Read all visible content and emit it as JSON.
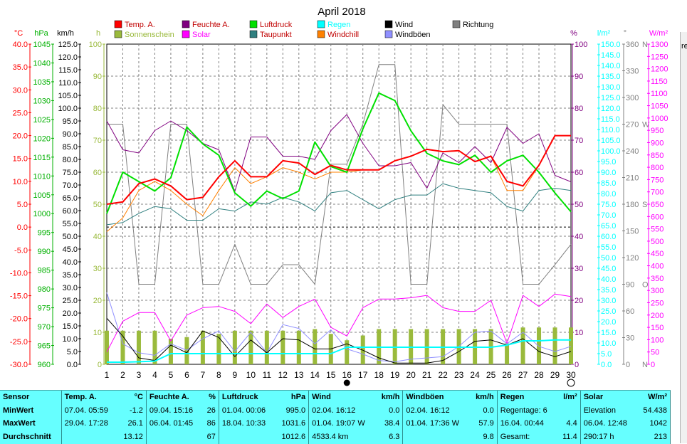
{
  "chart_data": {
    "type": "line",
    "title": "April 2018",
    "x": [
      1,
      2,
      3,
      4,
      5,
      6,
      7,
      8,
      9,
      10,
      11,
      12,
      13,
      14,
      15,
      16,
      17,
      18,
      19,
      20,
      21,
      22,
      23,
      24,
      25,
      26,
      27,
      28,
      29,
      30
    ],
    "xlim": [
      1,
      30
    ],
    "grid": true,
    "legend": [
      {
        "name": "Temp. A.",
        "color": "#ff0000"
      },
      {
        "name": "Feuchte A.",
        "color": "#800080"
      },
      {
        "name": "Luftdruck",
        "color": "#00e000"
      },
      {
        "name": "Regen",
        "color": "#00ffff"
      },
      {
        "name": "Wind",
        "color": "#000000"
      },
      {
        "name": "Richtung",
        "color": "#808080"
      },
      {
        "name": "Sonnenschein",
        "color": "#9aba3c"
      },
      {
        "name": "Solar",
        "color": "#ff00ff"
      },
      {
        "name": "Taupunkt",
        "color": "#2f7f7f"
      },
      {
        "name": "Windchill",
        "color": "#ff8000"
      },
      {
        "name": "Windböen",
        "color": "#9090ff"
      }
    ],
    "axes": {
      "temp": {
        "unit": "°C",
        "min": -30,
        "max": 40,
        "step": 5,
        "color": "#ff0000"
      },
      "pressure": {
        "unit": "hPa",
        "min": 960,
        "max": 1045,
        "step": 5,
        "color": "#00b000"
      },
      "wind": {
        "unit": "km/h",
        "min": 0,
        "max": 125,
        "step": 5,
        "color": "#000000"
      },
      "sunshine": {
        "unit": "h",
        "min": 0,
        "max": 100,
        "step": 10,
        "color": "#9aba3c"
      },
      "humidity": {
        "unit": "%",
        "min": 0,
        "max": 100,
        "step": 10,
        "color": "#800080"
      },
      "rain": {
        "unit": "l/m²",
        "min": 0,
        "max": 150,
        "step": 5,
        "color": "#00ffff"
      },
      "direction": {
        "unit": "°",
        "min": 0,
        "max": 360,
        "step": 30,
        "color": "#808080",
        "markers": [
          {
            "value": 360,
            "label": "N"
          },
          {
            "value": 270,
            "label": "W"
          },
          {
            "value": 180,
            "label": "S"
          },
          {
            "value": 90,
            "label": "O"
          },
          {
            "value": 0,
            "label": "N"
          }
        ]
      },
      "solar": {
        "unit": "W/m²",
        "min": 0,
        "max": 1300,
        "step": 50,
        "color": "#ff00ff"
      }
    },
    "series": [
      {
        "name": "Temp. A.",
        "axis": "temp",
        "color": "#ff0000",
        "values": [
          5.0,
          5.5,
          9.5,
          10.5,
          9.0,
          6.0,
          6.5,
          11.0,
          14.5,
          11.0,
          11.0,
          14.5,
          14.0,
          11.5,
          13.5,
          12.5,
          12.5,
          12.5,
          14.5,
          15.5,
          17.0,
          16.5,
          16.7,
          14.3,
          15.5,
          10.0,
          9.0,
          13.5,
          20.0,
          20.0
        ]
      },
      {
        "name": "Feuchte A.",
        "axis": "humidity",
        "color": "#800080",
        "values": [
          76,
          67,
          66,
          73,
          76,
          73,
          69,
          67,
          54,
          71,
          71,
          65,
          65,
          64,
          73,
          78,
          69,
          62,
          62,
          63,
          55,
          66,
          63,
          68,
          63,
          74,
          69,
          72,
          59,
          57
        ]
      },
      {
        "name": "Luftdruck",
        "axis": "pressure",
        "color": "#00e000",
        "values": [
          1000.0,
          1011.0,
          1008.5,
          1006.0,
          1009.5,
          1023.0,
          1018.5,
          1015.5,
          1005.5,
          1002.0,
          1006.0,
          1004.0,
          1006.0,
          1019.0,
          1012.5,
          1011.0,
          1022.5,
          1032.0,
          1030.0,
          1022.0,
          1016.0,
          1014.0,
          1013.0,
          1015.5,
          1011.0,
          1014.0,
          1015.5,
          1011.0,
          1005.5,
          1000.5
        ]
      },
      {
        "name": "Taupunkt",
        "axis": "temp",
        "color": "#2f7f7f",
        "values": [
          0.5,
          1.0,
          3.0,
          4.5,
          4.0,
          1.5,
          1.5,
          4.0,
          3.5,
          5.5,
          5.0,
          6.5,
          5.5,
          3.5,
          7.5,
          8.0,
          6.0,
          4.0,
          6.0,
          7.0,
          7.0,
          9.5,
          8.5,
          8.0,
          7.5,
          4.5,
          3.5,
          8.0,
          8.5,
          8.0
        ]
      },
      {
        "name": "Windchill",
        "axis": "temp",
        "color": "#ff8000",
        "values": [
          -1.0,
          2.0,
          8.0,
          10.0,
          8.0,
          5.0,
          2.5,
          8.0,
          13.0,
          9.5,
          11.0,
          13.0,
          12.0,
          10.5,
          12.0,
          12.0,
          12.5,
          12.5,
          14.5,
          15.5,
          17.0,
          16.5,
          16.7,
          14.3,
          15.5,
          8.0,
          8.0,
          13.5,
          20.0,
          20.0
        ]
      },
      {
        "name": "Wind",
        "axis": "wind",
        "color": "#000000",
        "values": [
          18.0,
          11.0,
          2.5,
          1.5,
          7.5,
          4.5,
          13.0,
          10.5,
          3.0,
          9.5,
          4.5,
          10.0,
          9.5,
          6.0,
          6.0,
          8.0,
          5.5,
          2.5,
          0.5,
          0.5,
          0.5,
          1.5,
          5.0,
          9.0,
          9.5,
          7.5,
          10.0,
          5.0,
          3.0,
          5.0
        ]
      },
      {
        "name": "Windböen",
        "axis": "wind",
        "color": "#9090ff",
        "values": [
          28.0,
          8.0,
          4.5,
          3.5,
          8.0,
          5.5,
          10.0,
          13.0,
          5.0,
          12.5,
          4.5,
          15.5,
          14.0,
          8.0,
          13.5,
          6.0,
          4.0,
          1.5,
          1.0,
          2.0,
          2.5,
          3.0,
          7.0,
          12.5,
          13.0,
          8.0,
          12.5,
          7.0,
          5.0,
          7.0
        ]
      },
      {
        "name": "Richtung",
        "axis": "direction",
        "color": "#808080",
        "values": [
          270,
          270,
          90,
          90,
          270,
          270,
          90,
          90,
          135,
          90,
          90,
          112,
          112,
          90,
          225,
          225,
          270,
          337,
          337,
          90,
          90,
          292,
          270,
          270,
          270,
          270,
          90,
          90,
          112,
          135
        ]
      },
      {
        "name": "Solar",
        "axis": "solar",
        "color": "#ff00ff",
        "values": [
          50,
          175,
          210,
          210,
          95,
          200,
          230,
          235,
          215,
          165,
          245,
          190,
          235,
          265,
          150,
          115,
          230,
          265,
          265,
          270,
          280,
          230,
          215,
          215,
          260,
          85,
          280,
          235,
          285,
          275
        ]
      },
      {
        "name": "Regen",
        "axis": "rain",
        "color": "#00ffff",
        "values": [
          1.0,
          1.0,
          1.2,
          1.5,
          5.0,
          5.0,
          5.0,
          5.0,
          5.0,
          5.0,
          5.0,
          5.0,
          5.0,
          5.0,
          5.0,
          8.0,
          8.0,
          8.0,
          8.0,
          8.0,
          8.0,
          8.0,
          8.0,
          8.0,
          8.0,
          9.0,
          11.0,
          11.0,
          11.4,
          11.4
        ]
      },
      {
        "name": "Sonnenschein",
        "axis": "sunshine",
        "type": "bar",
        "color": "#9aba3c",
        "values": [
          10.5,
          10.5,
          10.5,
          10.5,
          8.0,
          8.5,
          10.5,
          9.5,
          10.5,
          10.5,
          10.5,
          10.5,
          10.5,
          11.0,
          9.5,
          7.5,
          9.0,
          11.0,
          11.0,
          11.0,
          11.0,
          11.0,
          11.0,
          11.0,
          11.0,
          6.5,
          11.5,
          11.5,
          11.5,
          11.5
        ]
      }
    ],
    "x_markers": [
      {
        "x": 16,
        "symbol": "filled-circle"
      },
      {
        "x": 30,
        "symbol": "open-circle"
      }
    ]
  },
  "stats_table": {
    "columns": [
      {
        "name": "Sensor",
        "unit": ""
      },
      {
        "name": "Temp. A.",
        "unit": "°C"
      },
      {
        "name": "Feuchte A.",
        "unit": "%"
      },
      {
        "name": "Luftdruck",
        "unit": "hPa"
      },
      {
        "name": "Wind",
        "unit": "km/h"
      },
      {
        "name": "Windböen",
        "unit": "km/h"
      },
      {
        "name": "Regen",
        "unit": "l/m²"
      },
      {
        "name": "Solar",
        "unit": "W/m²"
      }
    ],
    "rows": [
      {
        "label": "MinWert",
        "cells": [
          [
            "07.04.  05:59",
            "-1.2"
          ],
          [
            "09.04.  15:16",
            "26"
          ],
          [
            "01.04.  00:06",
            "995.0"
          ],
          [
            "02.04.  16:12",
            "0.0"
          ],
          [
            "02.04.  16:12",
            "0.0"
          ],
          [
            "Regentage: 6",
            ""
          ],
          [
            "Elevation",
            "54.438"
          ]
        ]
      },
      {
        "label": "MaxWert",
        "cells": [
          [
            "29.04.  17:28",
            "26.1"
          ],
          [
            "06.04.  01:45",
            "86"
          ],
          [
            "18.04.  10:33",
            "1031.6"
          ],
          [
            "01.04.  19:07  W",
            "38.4"
          ],
          [
            "01.04.  17:36  W",
            "57.9"
          ],
          [
            "16.04.  00:44",
            "4.4"
          ],
          [
            "06.04.  12:48",
            "1042"
          ]
        ]
      },
      {
        "label": "Durchschnitt",
        "cells": [
          [
            "",
            "13.12"
          ],
          [
            "",
            "67"
          ],
          [
            "",
            "1012.6"
          ],
          [
            "4533.4 km",
            "6.3"
          ],
          [
            "",
            "9.8"
          ],
          [
            "Gesamt:",
            "11.4"
          ],
          [
            "290:17 h",
            "213"
          ]
        ]
      }
    ]
  },
  "side_panel": {
    "text": "re"
  },
  "colors": {
    "background": "#ffffff",
    "table_background": "#66ffff",
    "grid": "#808080",
    "zero_line": "#000000"
  }
}
